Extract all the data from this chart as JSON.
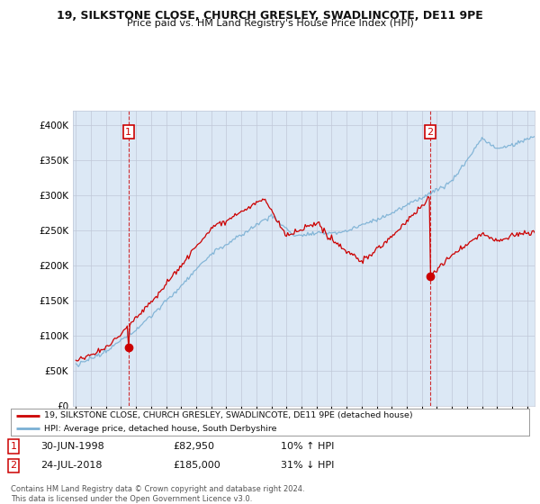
{
  "title": "19, SILKSTONE CLOSE, CHURCH GRESLEY, SWADLINCOTE, DE11 9PE",
  "subtitle": "Price paid vs. HM Land Registry's House Price Index (HPI)",
  "ylim": [
    0,
    420000
  ],
  "xlim_start": 1994.8,
  "xlim_end": 2025.5,
  "legend_line1": "19, SILKSTONE CLOSE, CHURCH GRESLEY, SWADLINCOTE, DE11 9PE (detached house)",
  "legend_line2": "HPI: Average price, detached house, South Derbyshire",
  "sale1_date": "30-JUN-1998",
  "sale1_price": "£82,950",
  "sale1_hpi": "10% ↑ HPI",
  "sale1_x": 1998.5,
  "sale1_y": 82950,
  "sale2_date": "24-JUL-2018",
  "sale2_price": "£185,000",
  "sale2_hpi": "31% ↓ HPI",
  "sale2_x": 2018.55,
  "sale2_y": 185000,
  "line_red": "#cc0000",
  "line_blue": "#7ab0d4",
  "bg_fill": "#dce8f5",
  "background_color": "#ffffff",
  "grid_color": "#c0c8d8",
  "copyright_text": "Contains HM Land Registry data © Crown copyright and database right 2024.\nThis data is licensed under the Open Government Licence v3.0."
}
